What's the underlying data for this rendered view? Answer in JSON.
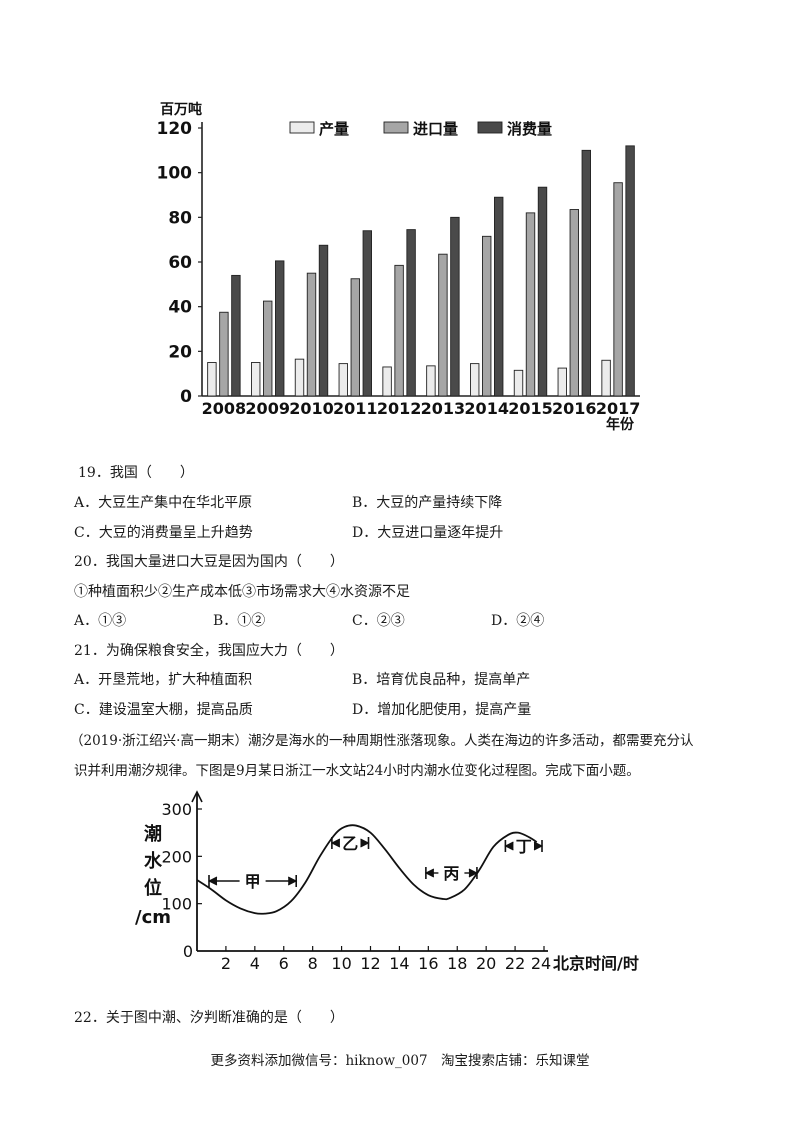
{
  "chart_data": [
    {
      "type": "bar",
      "ylabel": "百万吨",
      "xlabel": "年份",
      "ylim": [
        0,
        120
      ],
      "yticks": [
        "0",
        "20",
        "40",
        "60",
        "80",
        "100",
        "120"
      ],
      "categories": [
        "2008",
        "2009",
        "2010",
        "2011",
        "2012",
        "2013",
        "2014",
        "2015",
        "2016",
        "2017"
      ],
      "legend_position": "top",
      "series": [
        {
          "name": "产量",
          "color": "#ececec",
          "values": [
            15,
            15,
            16.5,
            14.5,
            13,
            13.5,
            14.5,
            11.5,
            12.5,
            16
          ]
        },
        {
          "name": "进口量",
          "color": "#a6a6a6",
          "values": [
            37.5,
            42.5,
            55,
            52.5,
            58.5,
            63.5,
            71.5,
            82,
            83.5,
            95.5
          ]
        },
        {
          "name": "消费量",
          "color": "#4a4a4a",
          "values": [
            54,
            60.5,
            67.5,
            74,
            74.5,
            80,
            89,
            93.5,
            110,
            112
          ]
        }
      ]
    },
    {
      "type": "line",
      "ylabel": "潮水位/cm",
      "xlabel": "北京时间/时",
      "xlim": [
        0,
        24
      ],
      "ylim": [
        0,
        300
      ],
      "xticks": [
        "2",
        "4",
        "6",
        "8",
        "10",
        "12",
        "14",
        "16",
        "18",
        "20",
        "22",
        "24"
      ],
      "yticks": [
        "100",
        "200",
        "300"
      ],
      "series": [
        {
          "x": [
            0,
            1,
            2,
            3,
            4,
            4.7,
            5.5,
            6.5,
            7.5,
            8.5,
            9.5,
            10.2,
            11,
            12,
            13,
            14,
            15,
            16,
            17,
            17.5,
            18.5,
            19.5,
            20.5,
            21.5,
            22.2,
            23,
            23.5
          ],
          "y": [
            150,
            130,
            107,
            90,
            80,
            79,
            84,
            105,
            145,
            200,
            245,
            262,
            265,
            250,
            215,
            175,
            140,
            118,
            110,
            112,
            130,
            170,
            220,
            245,
            250,
            240,
            230
          ]
        }
      ],
      "annotations": [
        {
          "label": "甲",
          "x_from": 0,
          "x_to": 7
        },
        {
          "label": "乙",
          "x_from": 8.5,
          "x_to": 12
        },
        {
          "label": "丙",
          "x_from": 15,
          "x_to": 19.5
        },
        {
          "label": "丁",
          "x_from": 20.5,
          "x_to": 24
        }
      ]
    }
  ],
  "q19": {
    "stem": "19．我国（　　）",
    "a": "A．大豆生产集中在华北平原",
    "b": "B．大豆的产量持续下降",
    "c": "C．大豆的消费量呈上升趋势",
    "d": "D．大豆进口量逐年提升"
  },
  "q20": {
    "stem": "20．我国大量进口大豆是因为国内（　　）",
    "items": "①种植面积少②生产成本低③市场需求大④水资源不足",
    "a": "A．①③",
    "b": "B．①②",
    "c": "C．②③",
    "d": "D．②④"
  },
  "q21": {
    "stem": "21．为确保粮食安全，我国应大力（　　）",
    "a": "A．开垦荒地，扩大种植面积",
    "b": "B．培育优良品种，提高单产",
    "c": "C．建设温室大棚，提高品质",
    "d": "D．增加化肥使用，提高产量"
  },
  "passage": {
    "line1": "（2019·浙江绍兴·高一期末）潮汐是海水的一种周期性涨落现象。人类在海边的许多活动，都需要充分认",
    "line2": "识并利用潮汐规律。下图是9月某日浙江一水文站24小时内潮水位变化过程图。完成下面小题。"
  },
  "q22": {
    "stem": "22．关于图中潮、汐判断准确的是（　　）"
  },
  "footer": "更多资料添加微信号：hiknow_007　淘宝搜索店铺：乐知课堂"
}
